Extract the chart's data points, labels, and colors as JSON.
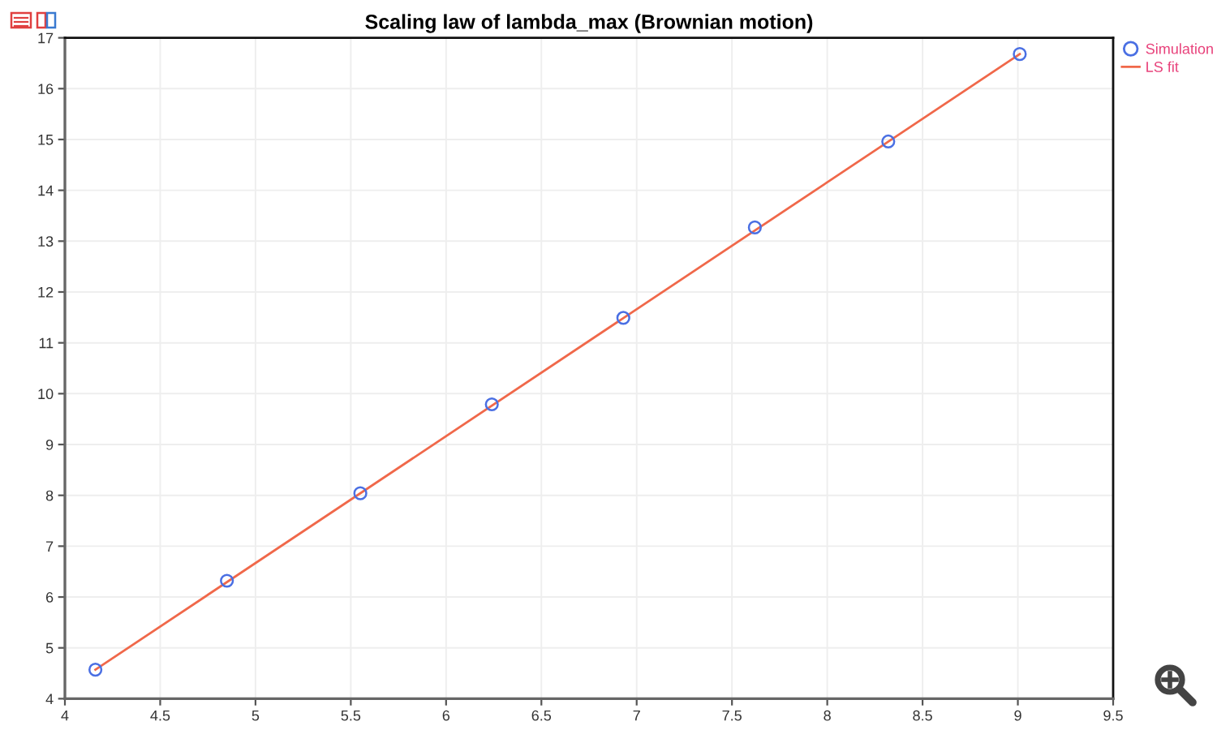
{
  "chart_data": {
    "type": "scatter",
    "title": "Scaling law of lambda_max (Brownian motion)",
    "x": [
      4.16,
      4.85,
      5.55,
      6.24,
      6.93,
      7.62,
      8.32,
      9.01
    ],
    "series": [
      {
        "name": "Simulation",
        "marker": "circle",
        "color": "#4a6fe3",
        "values": [
          4.57,
          6.32,
          8.04,
          9.79,
          11.49,
          13.27,
          14.96,
          16.68
        ]
      },
      {
        "name": "LS fit",
        "type": "line",
        "line_style": "solid",
        "color": "#f0684a",
        "x": [
          4.16,
          9.01
        ],
        "values": [
          4.57,
          16.68
        ]
      }
    ],
    "xlim": [
      4,
      9.5
    ],
    "xticks": [
      4,
      4.5,
      5,
      5.5,
      6,
      6.5,
      7,
      7.5,
      8,
      8.5,
      9,
      9.5
    ],
    "ylim": [
      4,
      17
    ],
    "yticks": [
      4,
      5,
      6,
      7,
      8,
      9,
      10,
      11,
      12,
      13,
      14,
      15,
      16,
      17
    ],
    "grid": true,
    "legend": "top right"
  }
}
